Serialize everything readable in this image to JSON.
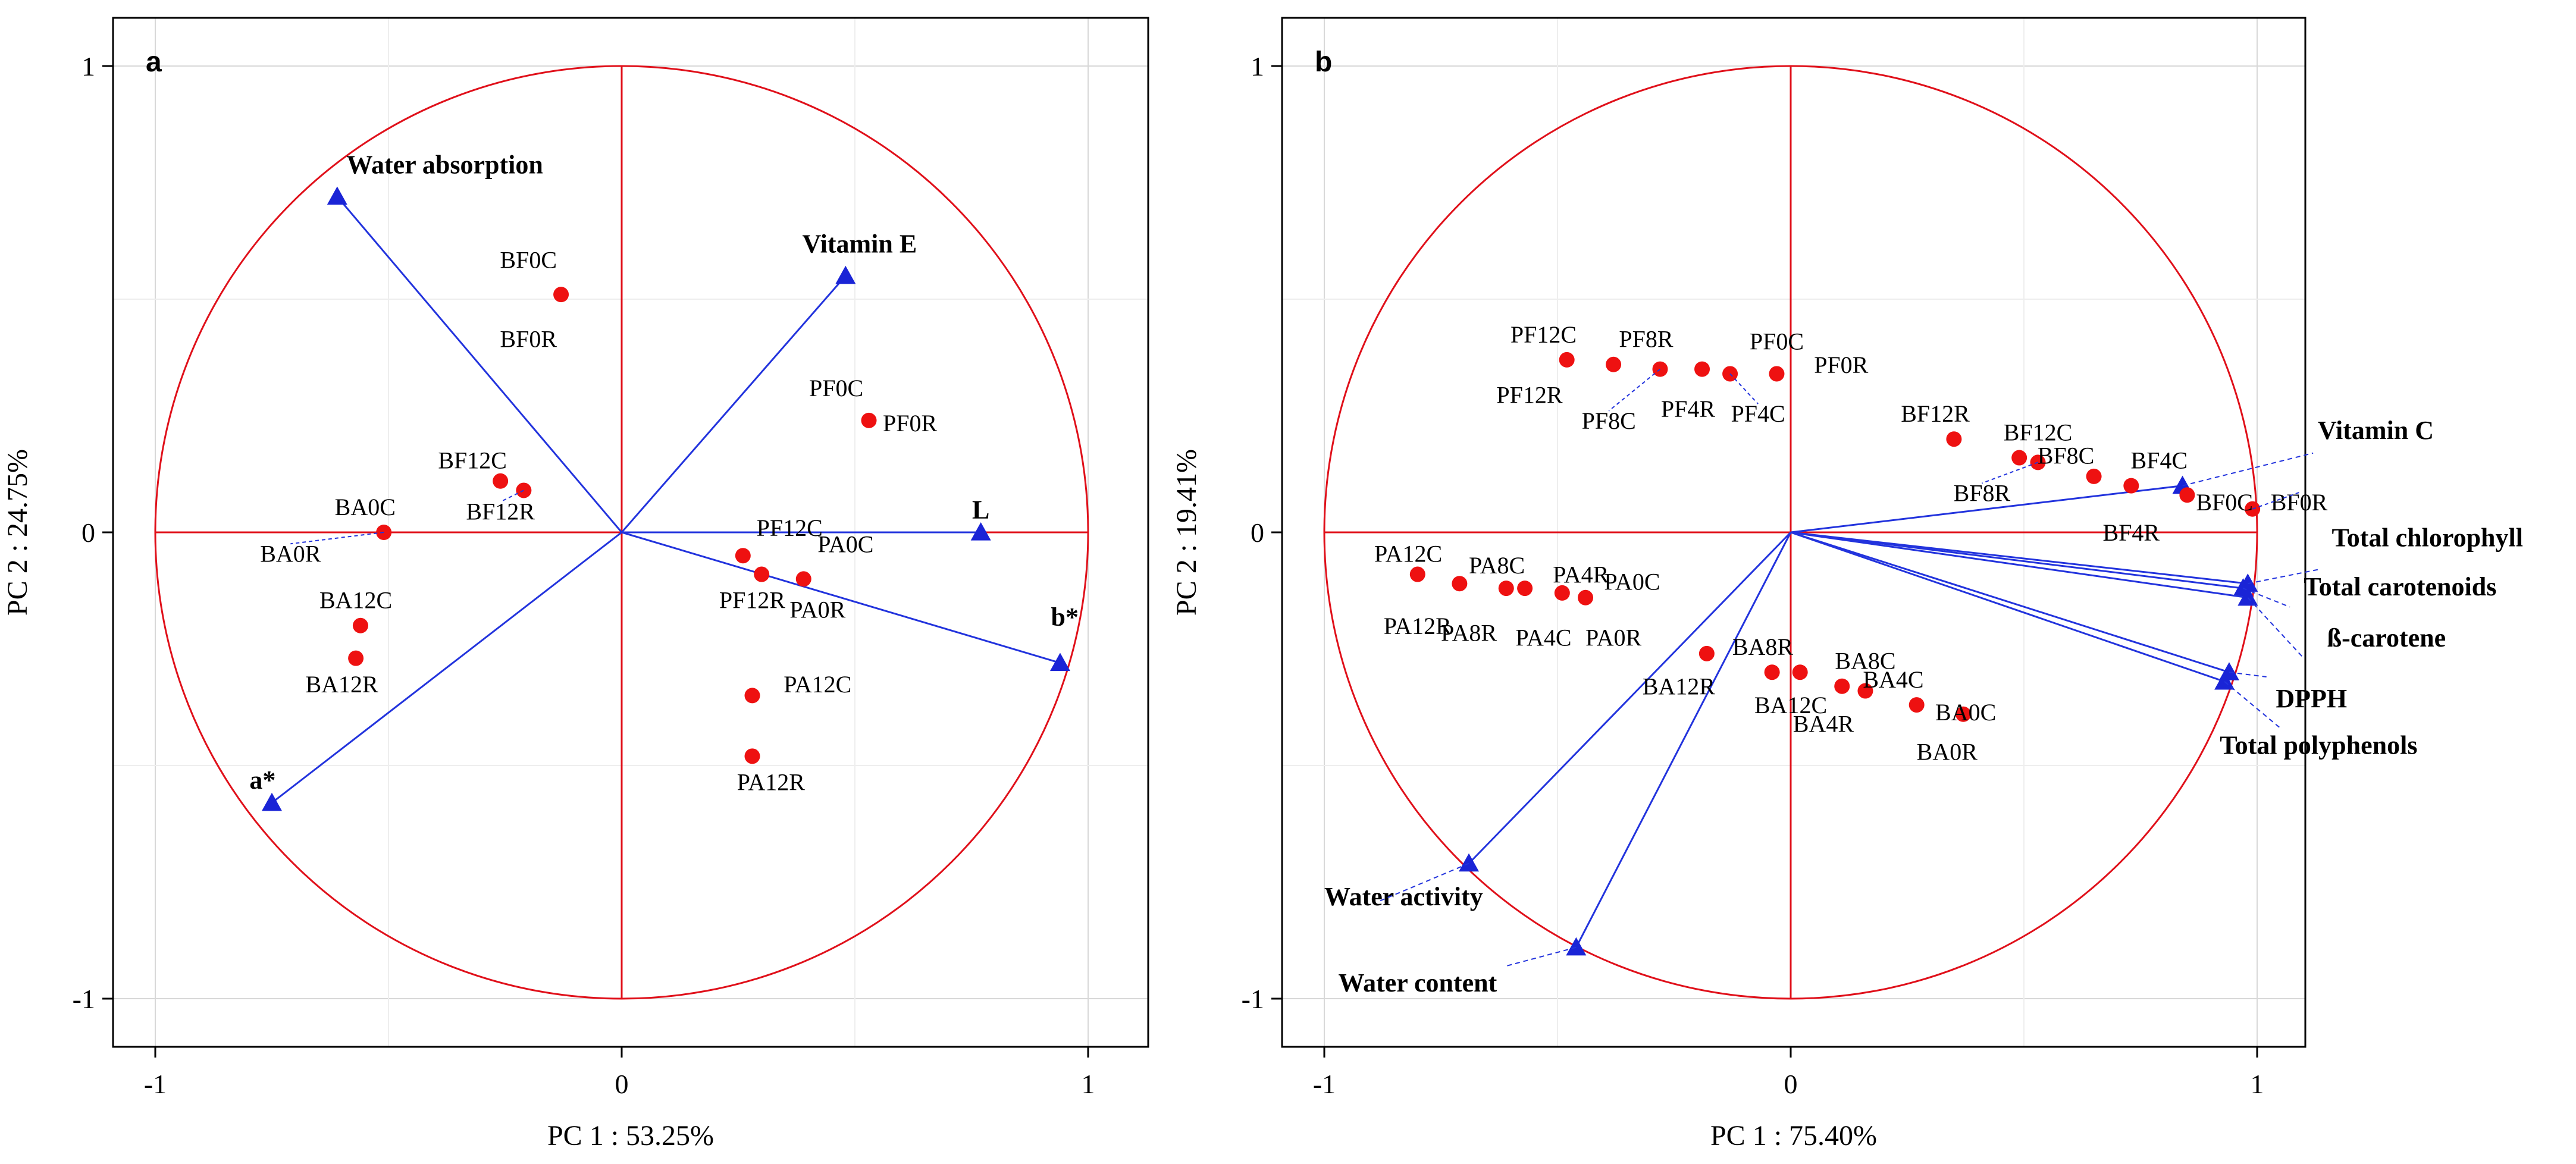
{
  "chart_data": [
    {
      "type": "scatter",
      "subtype": "pca-correlation-circle",
      "panel_label": "a",
      "xlabel": "PC 1 : 53.25%",
      "ylabel": "PC 2 : 24.75%",
      "xlim": [
        -1.1,
        1.1
      ],
      "ylim": [
        -1.1,
        1.1
      ],
      "x_ticks": [
        "-1",
        "0",
        "1"
      ],
      "y_ticks": [
        "1",
        "0",
        "-1"
      ],
      "grid": true,
      "variables": [
        {
          "name": "Water absorption",
          "x": -0.61,
          "y": 0.72
        },
        {
          "name": "Vitamin E",
          "x": 0.48,
          "y": 0.55
        },
        {
          "name": "L",
          "x": 0.77,
          "y": 0.0
        },
        {
          "name": "b*",
          "x": 0.94,
          "y": -0.28
        },
        {
          "name": "a*",
          "x": -0.75,
          "y": -0.58
        }
      ],
      "samples": [
        {
          "name": "BF0C",
          "x": -0.13,
          "y": 0.51
        },
        {
          "name": "BF0R",
          "x": -0.13,
          "y": 0.51
        },
        {
          "name": "PF0C",
          "x": 0.53,
          "y": 0.24
        },
        {
          "name": "PF0R",
          "x": 0.53,
          "y": 0.24
        },
        {
          "name": "BF12C",
          "x": -0.26,
          "y": 0.11
        },
        {
          "name": "BF12R",
          "x": -0.21,
          "y": 0.09
        },
        {
          "name": "BA0C",
          "x": -0.51,
          "y": 0.0
        },
        {
          "name": "BA0R",
          "x": -0.51,
          "y": 0.0
        },
        {
          "name": "PF12C",
          "x": 0.26,
          "y": -0.05
        },
        {
          "name": "PF12R",
          "x": 0.3,
          "y": -0.09
        },
        {
          "name": "PA0C",
          "x": 0.39,
          "y": -0.1
        },
        {
          "name": "PA0R",
          "x": 0.39,
          "y": -0.1
        },
        {
          "name": "BA12C",
          "x": -0.56,
          "y": -0.2
        },
        {
          "name": "BA12R",
          "x": -0.57,
          "y": -0.27
        },
        {
          "name": "PA12C",
          "x": 0.28,
          "y": -0.35
        },
        {
          "name": "PA12R",
          "x": 0.28,
          "y": -0.48
        }
      ]
    },
    {
      "type": "scatter",
      "subtype": "pca-correlation-circle",
      "panel_label": "b",
      "xlabel": "PC 1 : 75.40%",
      "ylabel": "PC 2 : 19.41%",
      "xlim": [
        -1.1,
        1.1
      ],
      "ylim": [
        -1.1,
        1.1
      ],
      "x_ticks": [
        "-1",
        "0",
        "1"
      ],
      "y_ticks": [
        "1",
        "0",
        "-1"
      ],
      "grid": true,
      "variables": [
        {
          "name": "Vitamin C",
          "x": 0.84,
          "y": 0.1
        },
        {
          "name": "Total chlorophyll",
          "x": 0.98,
          "y": -0.11
        },
        {
          "name": "Total carotenoids",
          "x": 0.97,
          "y": -0.12
        },
        {
          "name": "ß-carotene",
          "x": 0.98,
          "y": -0.14
        },
        {
          "name": "DPPH",
          "x": 0.94,
          "y": -0.3
        },
        {
          "name": "Total polyphenols",
          "x": 0.93,
          "y": -0.32
        },
        {
          "name": "Water activity",
          "x": -0.69,
          "y": -0.71
        },
        {
          "name": "Water content",
          "x": -0.46,
          "y": -0.89
        }
      ],
      "samples": [
        {
          "name": "PF12C",
          "x": -0.48,
          "y": 0.37
        },
        {
          "name": "PF12R",
          "x": -0.48,
          "y": 0.37
        },
        {
          "name": "PF8R",
          "x": -0.38,
          "y": 0.36
        },
        {
          "name": "PF8C",
          "x": -0.28,
          "y": 0.35
        },
        {
          "name": "PF4R",
          "x": -0.19,
          "y": 0.35
        },
        {
          "name": "PF4C",
          "x": -0.13,
          "y": 0.34
        },
        {
          "name": "PF0C",
          "x": -0.03,
          "y": 0.34
        },
        {
          "name": "PF0R",
          "x": -0.03,
          "y": 0.34
        },
        {
          "name": "BF12R",
          "x": 0.35,
          "y": 0.2
        },
        {
          "name": "BF12C",
          "x": 0.49,
          "y": 0.16
        },
        {
          "name": "BF8R",
          "x": 0.53,
          "y": 0.15
        },
        {
          "name": "BF8C",
          "x": 0.65,
          "y": 0.12
        },
        {
          "name": "BF4C",
          "x": 0.73,
          "y": 0.1
        },
        {
          "name": "BF4R",
          "x": 0.85,
          "y": 0.08
        },
        {
          "name": "BF0C",
          "x": 0.99,
          "y": 0.05
        },
        {
          "name": "BF0R",
          "x": 0.99,
          "y": 0.05
        },
        {
          "name": "PA12C",
          "x": -0.8,
          "y": -0.09
        },
        {
          "name": "PA12R",
          "x": -0.71,
          "y": -0.11
        },
        {
          "name": "PA8C",
          "x": -0.61,
          "y": -0.12
        },
        {
          "name": "PA8R",
          "x": -0.57,
          "y": -0.12
        },
        {
          "name": "PA4R",
          "x": -0.49,
          "y": -0.13
        },
        {
          "name": "PA4C",
          "x": -0.44,
          "y": -0.14
        },
        {
          "name": "PA0C",
          "x": -0.44,
          "y": -0.14
        },
        {
          "name": "PA0R",
          "x": -0.44,
          "y": -0.14
        },
        {
          "name": "BA12R",
          "x": -0.18,
          "y": -0.26
        },
        {
          "name": "BA8R",
          "x": -0.04,
          "y": -0.3
        },
        {
          "name": "BA12C",
          "x": 0.02,
          "y": -0.3
        },
        {
          "name": "BA8C",
          "x": 0.11,
          "y": -0.33
        },
        {
          "name": "BA4R",
          "x": 0.16,
          "y": -0.34
        },
        {
          "name": "BA4C",
          "x": 0.27,
          "y": -0.37
        },
        {
          "name": "BA0C",
          "x": 0.37,
          "y": -0.39
        },
        {
          "name": "BA0R",
          "x": 0.37,
          "y": -0.39
        }
      ]
    }
  ]
}
